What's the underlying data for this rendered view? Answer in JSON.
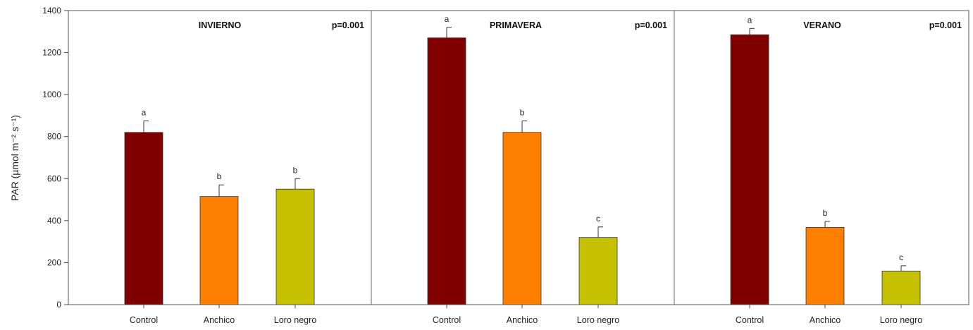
{
  "chart_data": {
    "type": "bar",
    "ylabel": "PAR (µmol m⁻² s⁻¹)",
    "ylim": [
      0,
      1400
    ],
    "yticks": [
      "0",
      "200",
      "400",
      "600",
      "800",
      "1000",
      "1200",
      "1400"
    ],
    "categories": [
      "Control",
      "Anchico",
      "Loro negro"
    ],
    "colors": [
      "#800000",
      "#ff7f00",
      "#c5c000"
    ],
    "panels": [
      {
        "title": "INVIERNO",
        "p_value": "p=0.001",
        "values": [
          820,
          515,
          550
        ],
        "errors": [
          55,
          55,
          50
        ],
        "letters": [
          "a",
          "b",
          "b"
        ]
      },
      {
        "title": "PRIMAVERA",
        "p_value": "p=0.001",
        "values": [
          1270,
          820,
          320
        ],
        "errors": [
          50,
          55,
          50
        ],
        "letters": [
          "a",
          "b",
          "c"
        ]
      },
      {
        "title": "VERANO",
        "p_value": "p=0.001",
        "values": [
          1285,
          368,
          160
        ],
        "errors": [
          30,
          28,
          25
        ],
        "letters": [
          "a",
          "b",
          "c"
        ]
      }
    ]
  }
}
